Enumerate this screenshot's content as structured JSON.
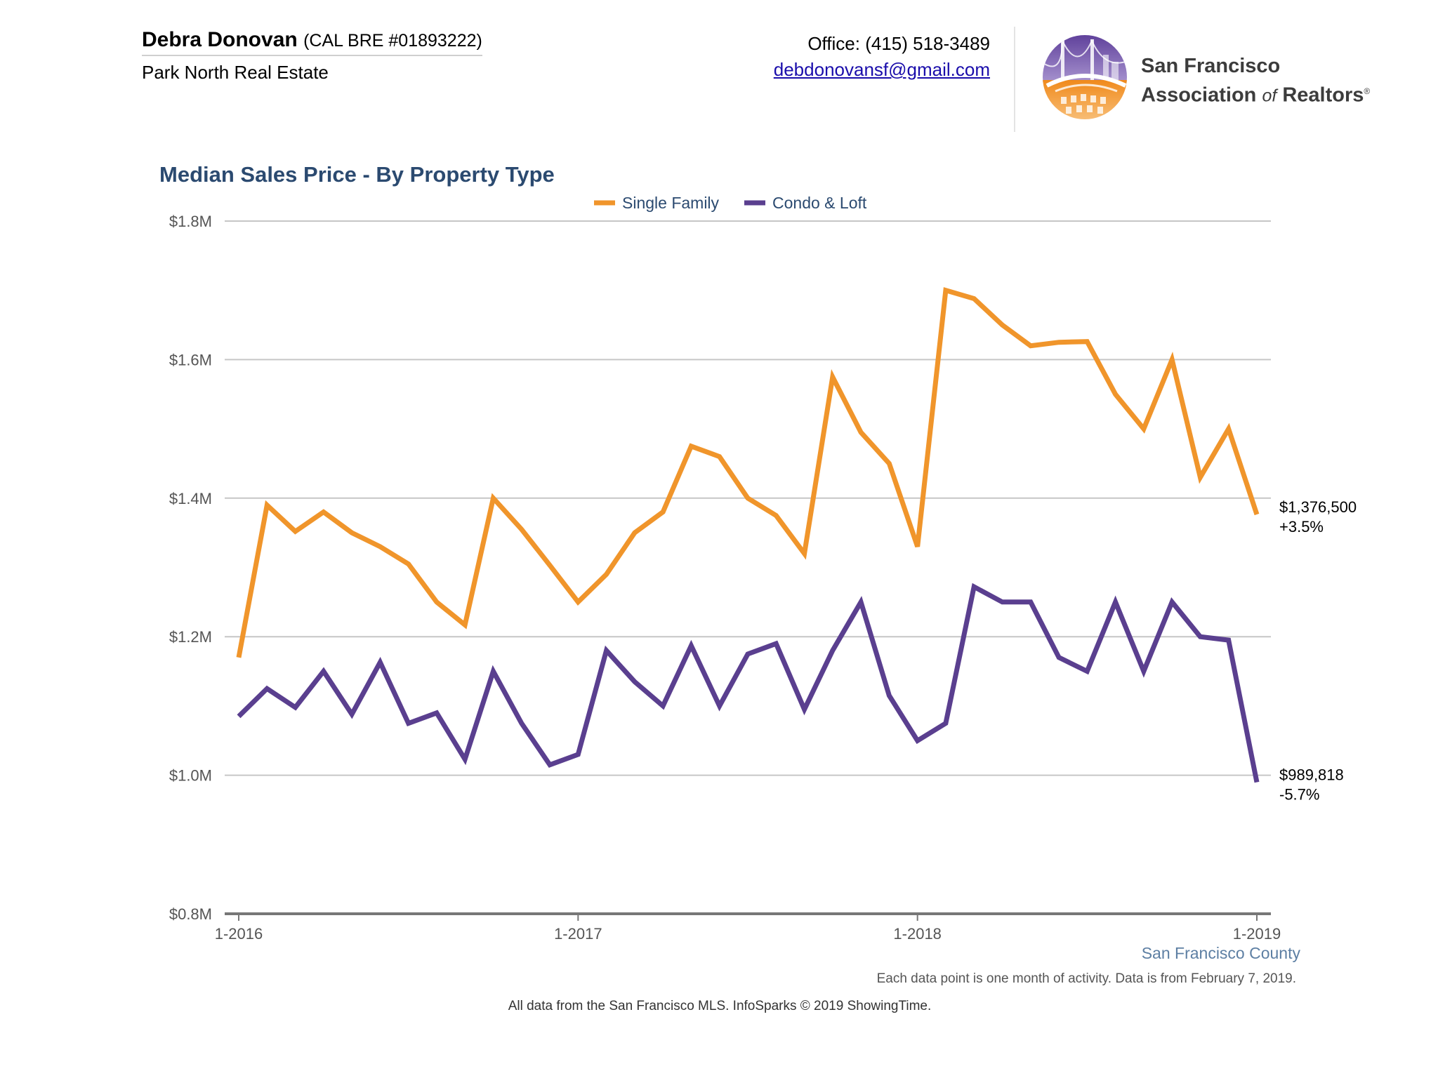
{
  "header": {
    "agent_name": "Debra Donovan",
    "agent_license": "(CAL BRE #01893222)",
    "brokerage": "Park North Real Estate",
    "office_phone": "Office: (415) 518-3489",
    "email": "debdonovansf@gmail.com",
    "logo_line1": "San Francisco",
    "logo_line2_a": "Association ",
    "logo_line2_of": "of",
    "logo_line2_b": " Realtors",
    "logo_reg": "®"
  },
  "chart_data": {
    "type": "line",
    "title": "Median Sales Price - By Property Type",
    "xlabel": "",
    "ylabel": "",
    "ylim": [
      800000,
      1800000
    ],
    "y_ticks": [
      800000,
      1000000,
      1200000,
      1400000,
      1600000,
      1800000
    ],
    "y_tick_labels": [
      "$0.8M",
      "$1.0M",
      "$1.2M",
      "$1.4M",
      "$1.6M",
      "$1.8M"
    ],
    "x_tick_labels": [
      "1-2016",
      "1-2017",
      "1-2018",
      "1-2019"
    ],
    "x_tick_index": [
      0,
      12,
      24,
      36
    ],
    "months": 37,
    "grid": true,
    "legend_position": "top-center",
    "series": [
      {
        "name": "Single Family",
        "color": "#f0952b",
        "end_label": "$1,376,500",
        "end_change": "+3.5%",
        "values": [
          1170000,
          1390000,
          1352000,
          1380000,
          1350000,
          1330000,
          1305000,
          1250000,
          1217000,
          1400000,
          1355000,
          1303000,
          1250000,
          1290000,
          1350000,
          1380000,
          1475000,
          1460000,
          1400000,
          1375000,
          1320000,
          1575000,
          1495000,
          1450000,
          1330000,
          1700000,
          1688000,
          1650000,
          1620000,
          1625000,
          1626000,
          1550000,
          1500000,
          1600000,
          1430000,
          1500000,
          1376500
        ]
      },
      {
        "name": "Condo & Loft",
        "color": "#5a3f8f",
        "end_label": "$989,818",
        "end_change": "-5.7%",
        "values": [
          1085000,
          1125000,
          1098000,
          1150000,
          1088000,
          1163000,
          1075000,
          1090000,
          1023000,
          1150000,
          1075000,
          1015000,
          1030000,
          1180000,
          1135000,
          1100000,
          1187000,
          1100000,
          1175000,
          1190000,
          1095000,
          1180000,
          1250000,
          1115000,
          1050000,
          1075000,
          1272000,
          1250000,
          1250000,
          1170000,
          1150000,
          1250000,
          1150000,
          1250000,
          1200000,
          1195000,
          989818
        ]
      }
    ]
  },
  "footer": {
    "county": "San Francisco County",
    "note": "Each data point is one month of activity. Data is from February 7, 2019.",
    "source": "All data from the San Francisco MLS. InfoSparks © 2019 ShowingTime."
  }
}
